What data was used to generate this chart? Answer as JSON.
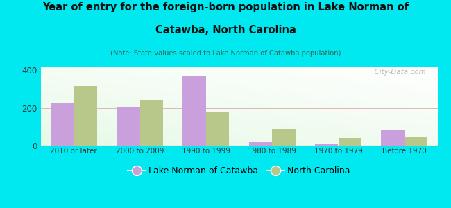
{
  "categories": [
    "2010 or later",
    "2000 to 2009",
    "1990 to 1999",
    "1980 to 1989",
    "1970 to 1979",
    "Before 1970"
  ],
  "lake_norman": [
    228,
    205,
    370,
    18,
    8,
    80
  ],
  "north_carolina": [
    315,
    242,
    180,
    88,
    40,
    48
  ],
  "lake_norman_color": "#c9a0dc",
  "north_carolina_color": "#b8c88a",
  "title_line1": "Year of entry for the foreign-born population in Lake Norman of",
  "title_line2": "Catawba, North Carolina",
  "subtitle": "(Note: State values scaled to Lake Norman of Catawba population)",
  "title_color": "#111111",
  "subtitle_color": "#336655",
  "background_outer": "#00e8f0",
  "ylabel_ticks": [
    0,
    200,
    400
  ],
  "ylim": [
    0,
    420
  ],
  "bar_width": 0.35,
  "legend_label_lake": "Lake Norman of Catawba",
  "legend_label_nc": "North Carolina",
  "watermark": "  City-Data.com"
}
